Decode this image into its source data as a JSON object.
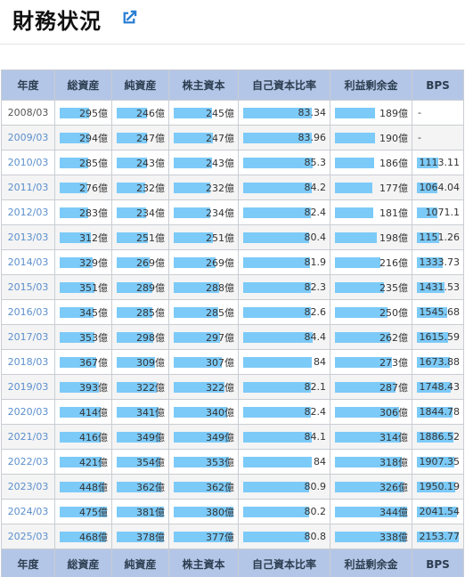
{
  "header": {
    "title": "財務状況",
    "link_icon": "external-link-icon"
  },
  "colors": {
    "header_bg": "#b4c6e7",
    "bar": "#7ccaf8",
    "link": "#5b8fcc",
    "icon": "#2a7fd4"
  },
  "table": {
    "columns": [
      "年度",
      "総資産",
      "純資産",
      "株主資本",
      "自己資本比率",
      "利益剰余金",
      "BPS"
    ],
    "max": {
      "assets": 475,
      "net": 381,
      "equity": 380,
      "ratio": 100,
      "retained": 344,
      "bps": 2153.77
    },
    "rows": [
      {
        "year": "2008/03",
        "link": false,
        "assets": "295億",
        "assets_n": 295,
        "net": "246億",
        "net_n": 246,
        "equity": "245億",
        "equity_n": 245,
        "ratio": "83.34",
        "ratio_n": 83.34,
        "retained": "189億",
        "retained_n": 189,
        "bps": "-",
        "bps_n": 0
      },
      {
        "year": "2009/03",
        "link": true,
        "assets": "294億",
        "assets_n": 294,
        "net": "247億",
        "net_n": 247,
        "equity": "247億",
        "equity_n": 247,
        "ratio": "83.96",
        "ratio_n": 83.96,
        "retained": "190億",
        "retained_n": 190,
        "bps": "-",
        "bps_n": 0
      },
      {
        "year": "2010/03",
        "link": true,
        "assets": "285億",
        "assets_n": 285,
        "net": "243億",
        "net_n": 243,
        "equity": "243億",
        "equity_n": 243,
        "ratio": "85.3",
        "ratio_n": 85.3,
        "retained": "186億",
        "retained_n": 186,
        "bps": "1113.11",
        "bps_n": 1113.11
      },
      {
        "year": "2011/03",
        "link": true,
        "assets": "276億",
        "assets_n": 276,
        "net": "232億",
        "net_n": 232,
        "equity": "232億",
        "equity_n": 232,
        "ratio": "84.2",
        "ratio_n": 84.2,
        "retained": "177億",
        "retained_n": 177,
        "bps": "1064.04",
        "bps_n": 1064.04
      },
      {
        "year": "2012/03",
        "link": true,
        "assets": "283億",
        "assets_n": 283,
        "net": "234億",
        "net_n": 234,
        "equity": "234億",
        "equity_n": 234,
        "ratio": "82.4",
        "ratio_n": 82.4,
        "retained": "181億",
        "retained_n": 181,
        "bps": "1071.1",
        "bps_n": 1071.1
      },
      {
        "year": "2013/03",
        "link": true,
        "assets": "312億",
        "assets_n": 312,
        "net": "251億",
        "net_n": 251,
        "equity": "251億",
        "equity_n": 251,
        "ratio": "80.4",
        "ratio_n": 80.4,
        "retained": "198億",
        "retained_n": 198,
        "bps": "1151.26",
        "bps_n": 1151.26
      },
      {
        "year": "2014/03",
        "link": true,
        "assets": "329億",
        "assets_n": 329,
        "net": "269億",
        "net_n": 269,
        "equity": "269億",
        "equity_n": 269,
        "ratio": "81.9",
        "ratio_n": 81.9,
        "retained": "216億",
        "retained_n": 216,
        "bps": "1333.73",
        "bps_n": 1333.73
      },
      {
        "year": "2015/03",
        "link": true,
        "assets": "351億",
        "assets_n": 351,
        "net": "289億",
        "net_n": 289,
        "equity": "288億",
        "equity_n": 288,
        "ratio": "82.3",
        "ratio_n": 82.3,
        "retained": "235億",
        "retained_n": 235,
        "bps": "1431.53",
        "bps_n": 1431.53
      },
      {
        "year": "2016/03",
        "link": true,
        "assets": "345億",
        "assets_n": 345,
        "net": "285億",
        "net_n": 285,
        "equity": "285億",
        "equity_n": 285,
        "ratio": "82.6",
        "ratio_n": 82.6,
        "retained": "250億",
        "retained_n": 250,
        "bps": "1545.68",
        "bps_n": 1545.68
      },
      {
        "year": "2017/03",
        "link": true,
        "assets": "353億",
        "assets_n": 353,
        "net": "298億",
        "net_n": 298,
        "equity": "297億",
        "equity_n": 297,
        "ratio": "84.4",
        "ratio_n": 84.4,
        "retained": "262億",
        "retained_n": 262,
        "bps": "1615.59",
        "bps_n": 1615.59
      },
      {
        "year": "2018/03",
        "link": true,
        "assets": "367億",
        "assets_n": 367,
        "net": "309億",
        "net_n": 309,
        "equity": "307億",
        "equity_n": 307,
        "ratio": "84",
        "ratio_n": 84,
        "retained": "273億",
        "retained_n": 273,
        "bps": "1673.88",
        "bps_n": 1673.88
      },
      {
        "year": "2019/03",
        "link": true,
        "assets": "393億",
        "assets_n": 393,
        "net": "322億",
        "net_n": 322,
        "equity": "322億",
        "equity_n": 322,
        "ratio": "82.1",
        "ratio_n": 82.1,
        "retained": "287億",
        "retained_n": 287,
        "bps": "1748.43",
        "bps_n": 1748.43
      },
      {
        "year": "2020/03",
        "link": true,
        "assets": "414億",
        "assets_n": 414,
        "net": "341億",
        "net_n": 341,
        "equity": "340億",
        "equity_n": 340,
        "ratio": "82.4",
        "ratio_n": 82.4,
        "retained": "306億",
        "retained_n": 306,
        "bps": "1844.78",
        "bps_n": 1844.78
      },
      {
        "year": "2021/03",
        "link": true,
        "assets": "416億",
        "assets_n": 416,
        "net": "349億",
        "net_n": 349,
        "equity": "349億",
        "equity_n": 349,
        "ratio": "84.1",
        "ratio_n": 84.1,
        "retained": "314億",
        "retained_n": 314,
        "bps": "1886.52",
        "bps_n": 1886.52
      },
      {
        "year": "2022/03",
        "link": true,
        "assets": "421億",
        "assets_n": 421,
        "net": "354億",
        "net_n": 354,
        "equity": "353億",
        "equity_n": 353,
        "ratio": "84",
        "ratio_n": 84,
        "retained": "318億",
        "retained_n": 318,
        "bps": "1907.35",
        "bps_n": 1907.35
      },
      {
        "year": "2023/03",
        "link": true,
        "assets": "448億",
        "assets_n": 448,
        "net": "362億",
        "net_n": 362,
        "equity": "362億",
        "equity_n": 362,
        "ratio": "80.9",
        "ratio_n": 80.9,
        "retained": "326億",
        "retained_n": 326,
        "bps": "1950.19",
        "bps_n": 1950.19
      },
      {
        "year": "2024/03",
        "link": true,
        "assets": "475億",
        "assets_n": 475,
        "net": "381億",
        "net_n": 381,
        "equity": "380億",
        "equity_n": 380,
        "ratio": "80.2",
        "ratio_n": 80.2,
        "retained": "344億",
        "retained_n": 344,
        "bps": "2041.54",
        "bps_n": 2041.54
      },
      {
        "year": "2025/03",
        "link": true,
        "assets": "468億",
        "assets_n": 468,
        "net": "378億",
        "net_n": 378,
        "equity": "377億",
        "equity_n": 377,
        "ratio": "80.8",
        "ratio_n": 80.8,
        "retained": "338億",
        "retained_n": 338,
        "bps": "2153.77",
        "bps_n": 2153.77
      }
    ]
  }
}
